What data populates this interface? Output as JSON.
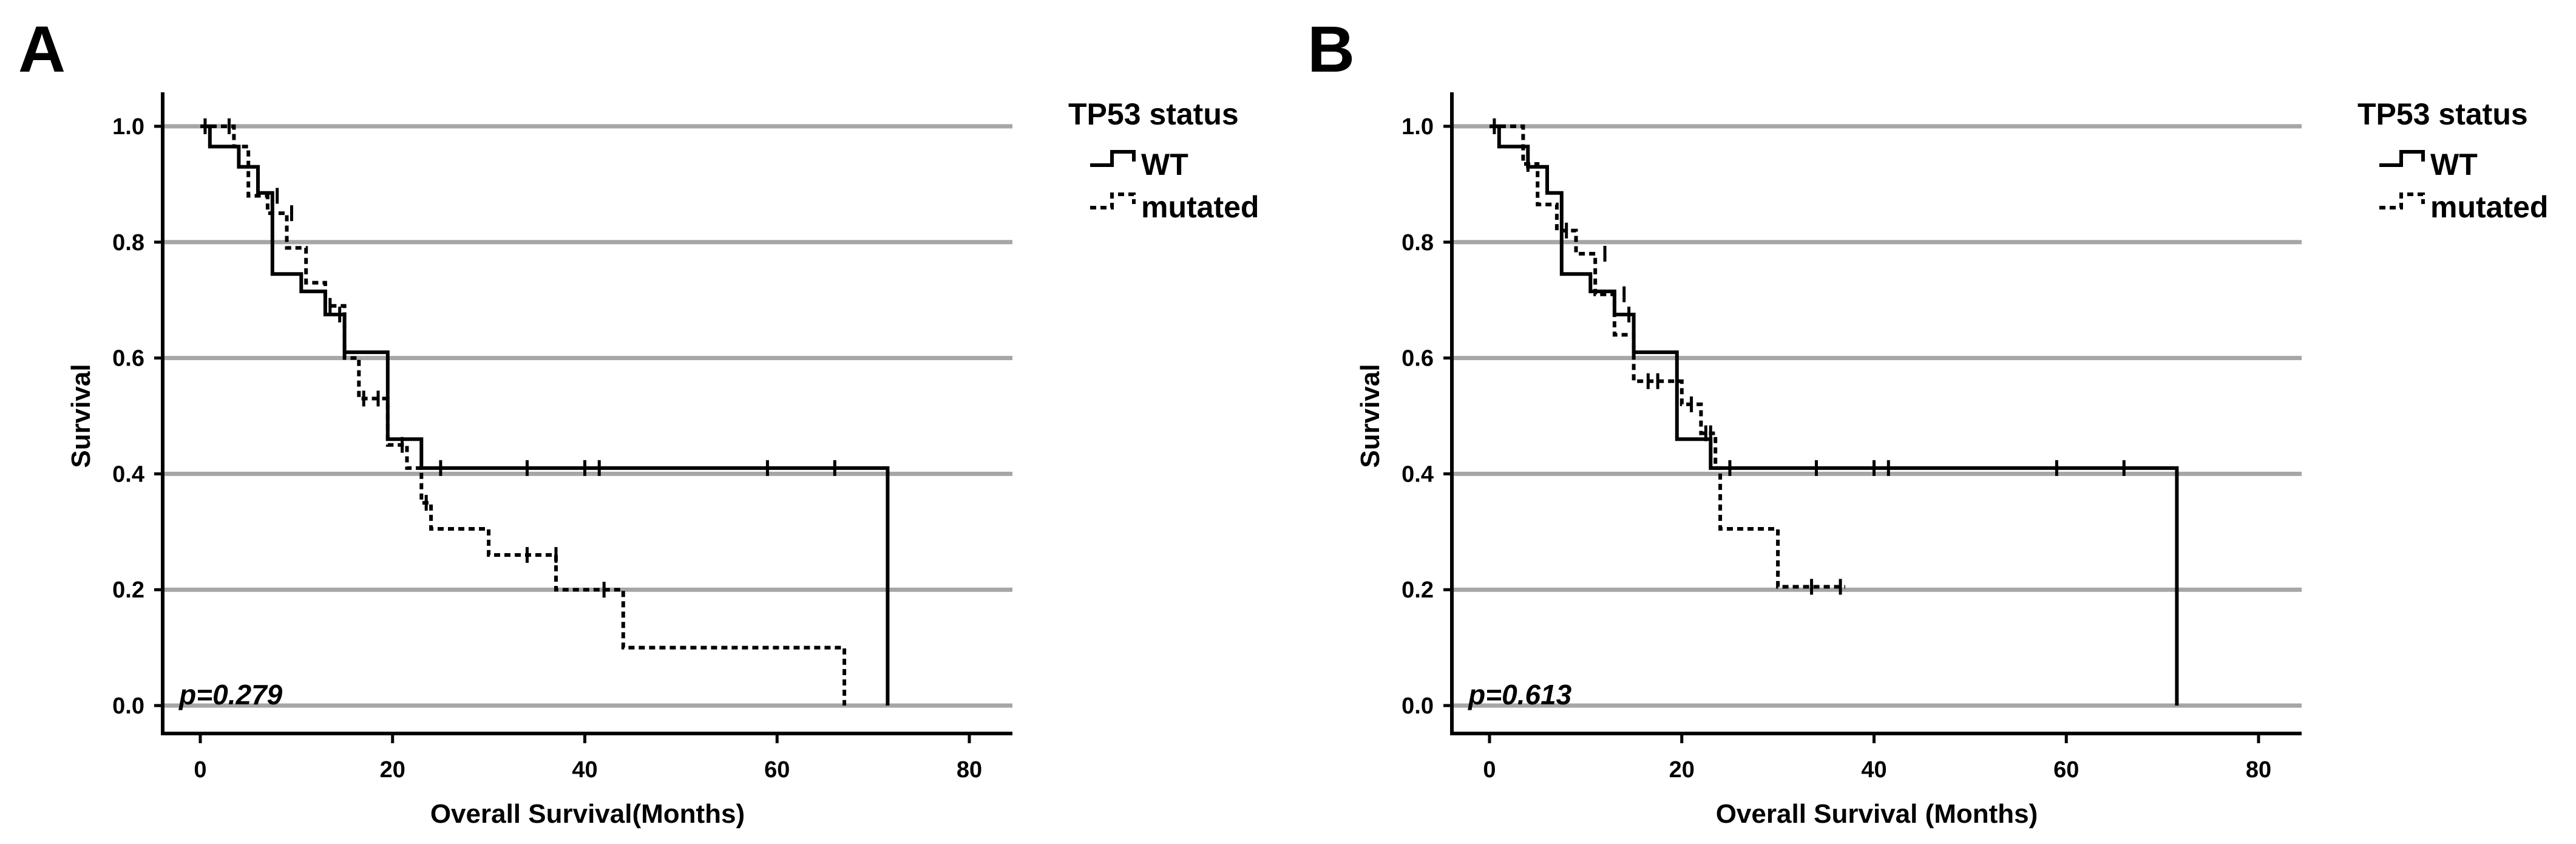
{
  "chart_data": [
    {
      "type": "line",
      "panel": "A",
      "xlabel": "Overall Survival(Months)",
      "ylabel": "Survival",
      "xticks": [
        0,
        20,
        40,
        60,
        80
      ],
      "yticks": [
        "0.0",
        "0.2",
        "0.4",
        "0.6",
        "0.8",
        "1.0"
      ],
      "xlim": [
        0,
        84
      ],
      "ylim": [
        0,
        1
      ],
      "grid": true,
      "legend_title": "TP53 status",
      "annotation": "p=0.279",
      "series": [
        {
          "name": "WT",
          "style": "solid",
          "x": [
            0,
            1,
            1,
            4,
            4,
            6,
            6,
            7.5,
            7.5,
            10.5,
            10.5,
            13,
            13,
            15,
            15,
            19.5,
            19.5,
            23,
            23,
            71.5,
            71.5
          ],
          "y": [
            1.0,
            1.0,
            0.965,
            0.965,
            0.93,
            0.93,
            0.885,
            0.885,
            0.745,
            0.745,
            0.715,
            0.715,
            0.675,
            0.675,
            0.61,
            0.61,
            0.46,
            0.46,
            0.41,
            0.41,
            0.0
          ],
          "censored_x": [
            0.5,
            14.5,
            25,
            34,
            40,
            41.5,
            59,
            66
          ],
          "censored_y": [
            1.0,
            0.675,
            0.41,
            0.41,
            0.41,
            0.41,
            0.41,
            0.41
          ]
        },
        {
          "name": "mutated",
          "style": "dashed",
          "x": [
            0,
            3.5,
            3.5,
            5,
            5,
            7,
            7,
            9,
            9,
            11,
            11,
            13,
            13,
            15,
            15,
            16.5,
            16.5,
            19.5,
            19.5,
            21.5,
            21.5,
            23,
            23,
            24,
            24,
            30,
            30,
            37,
            37,
            44,
            44,
            67,
            67
          ],
          "y": [
            1.0,
            1.0,
            0.965,
            0.965,
            0.88,
            0.88,
            0.85,
            0.85,
            0.79,
            0.79,
            0.73,
            0.73,
            0.69,
            0.69,
            0.6,
            0.6,
            0.53,
            0.53,
            0.45,
            0.45,
            0.41,
            0.41,
            0.35,
            0.35,
            0.305,
            0.305,
            0.26,
            0.26,
            0.2,
            0.2,
            0.1,
            0.1,
            0.0
          ],
          "censored_x": [
            3,
            8,
            9.5,
            13.5,
            17,
            18.5,
            21,
            23.5,
            34,
            37,
            42
          ],
          "censored_y": [
            1.0,
            0.88,
            0.85,
            0.69,
            0.53,
            0.53,
            0.45,
            0.35,
            0.26,
            0.26,
            0.2
          ]
        }
      ]
    },
    {
      "type": "line",
      "panel": "B",
      "xlabel": "Overall Survival (Months)",
      "ylabel": "Survival",
      "xticks": [
        0,
        20,
        40,
        60,
        80
      ],
      "yticks": [
        "0.0",
        "0.2",
        "0.4",
        "0.6",
        "0.8",
        "1.0"
      ],
      "xlim": [
        0,
        84
      ],
      "ylim": [
        0,
        1
      ],
      "grid": true,
      "legend_title": "TP53 status",
      "annotation": "p=0.613",
      "series": [
        {
          "name": "WT",
          "style": "solid",
          "x": [
            0,
            1,
            1,
            4,
            4,
            6,
            6,
            7.5,
            7.5,
            10.5,
            10.5,
            13,
            13,
            15,
            15,
            19.5,
            19.5,
            23,
            23,
            71.5,
            71.5
          ],
          "y": [
            1.0,
            1.0,
            0.965,
            0.965,
            0.93,
            0.93,
            0.885,
            0.885,
            0.745,
            0.745,
            0.715,
            0.715,
            0.675,
            0.675,
            0.61,
            0.61,
            0.46,
            0.46,
            0.41,
            0.41,
            0.0
          ],
          "censored_x": [
            0.5,
            14.5,
            25,
            34,
            40,
            41.5,
            59,
            66
          ],
          "censored_y": [
            1.0,
            0.675,
            0.41,
            0.41,
            0.41,
            0.41,
            0.41,
            0.41
          ]
        },
        {
          "name": "mutated",
          "style": "dashed",
          "x": [
            0,
            3.5,
            3.5,
            5,
            5,
            7,
            7,
            9,
            9,
            11,
            11,
            13,
            13,
            15,
            15,
            20,
            20,
            22,
            22,
            23.5,
            23.5,
            24,
            24,
            30,
            30,
            37
          ],
          "y": [
            1.0,
            1.0,
            0.935,
            0.935,
            0.865,
            0.865,
            0.82,
            0.82,
            0.78,
            0.78,
            0.71,
            0.71,
            0.64,
            0.64,
            0.56,
            0.56,
            0.52,
            0.52,
            0.47,
            0.47,
            0.41,
            0.41,
            0.305,
            0.305,
            0.205,
            0.205
          ],
          "censored_x": [
            4,
            8,
            12,
            14,
            16.5,
            17.5,
            21,
            22.5,
            23,
            33.5,
            36.5
          ],
          "censored_y": [
            0.935,
            0.82,
            0.78,
            0.71,
            0.56,
            0.56,
            0.52,
            0.47,
            0.47,
            0.205,
            0.205
          ]
        }
      ]
    }
  ]
}
